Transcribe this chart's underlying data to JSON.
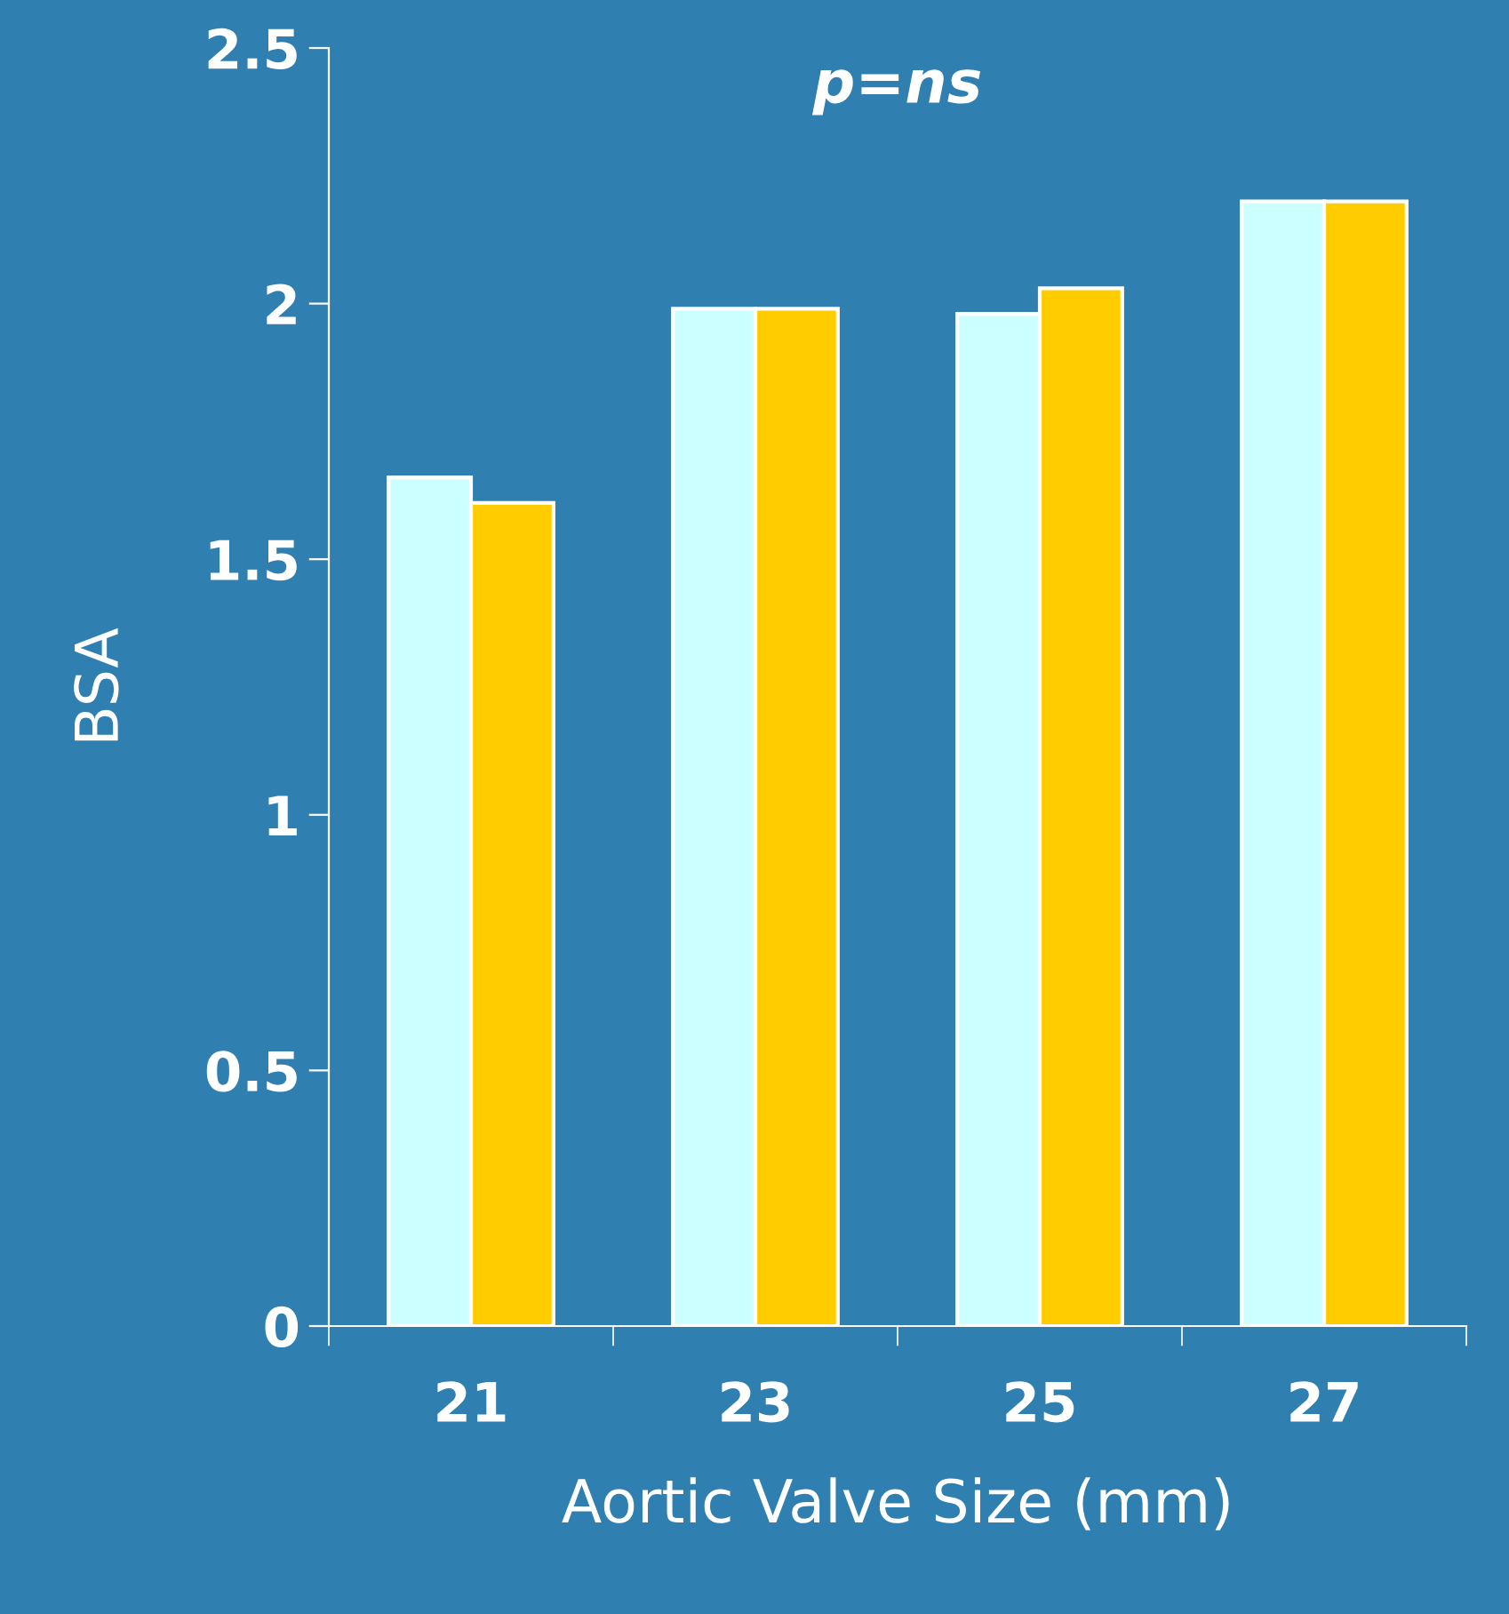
{
  "chart_data": {
    "type": "bar",
    "title": "p=ns",
    "xlabel": "Aortic Valve Size (mm)",
    "ylabel": "BSA",
    "categories": [
      "21",
      "23",
      "25",
      "27"
    ],
    "series": [
      {
        "color": "#ccffff",
        "values": [
          1.66,
          1.99,
          1.98,
          2.2
        ]
      },
      {
        "color": "#ffcc00",
        "values": [
          1.61,
          1.99,
          2.03,
          2.2
        ]
      }
    ],
    "ylim": [
      0,
      2.5
    ],
    "yticks": [
      0,
      0.5,
      1,
      1.5,
      2,
      2.5
    ],
    "grid": false,
    "legend": false
  }
}
